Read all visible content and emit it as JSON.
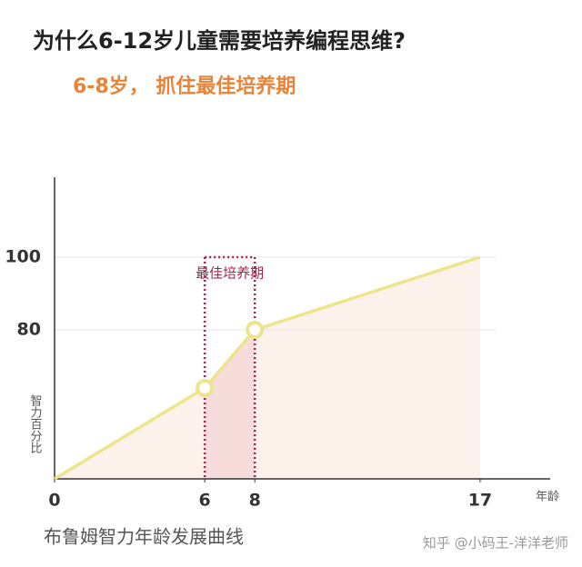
{
  "chart_data": {
    "type": "line",
    "title": "为什么6-12岁儿童需要培养编程思维?",
    "subtitle": "6-8岁， 抓住最佳培养期",
    "caption": "布鲁姆智力年龄发展曲线",
    "watermark": "知乎 @小码王-洋洋老师",
    "x_label": "年龄",
    "y_label": "智力百分比",
    "x": [
      0,
      6,
      8,
      17
    ],
    "series": [
      {
        "name": "智力百分比",
        "color": "#ece58c",
        "values": [
          39,
          64,
          80,
          100
        ]
      }
    ],
    "highlight": {
      "x": [
        6,
        8
      ],
      "label": "最佳培养期",
      "color": "#b0204a",
      "fill": "#f7dcdc"
    },
    "area_fill": "#fdf1ec",
    "xlim": [
      0,
      19.8
    ],
    "xticks": [
      0,
      6,
      8,
      17
    ],
    "ylim": [
      39,
      122
    ],
    "yticks": [
      80,
      100
    ],
    "grid": true
  }
}
